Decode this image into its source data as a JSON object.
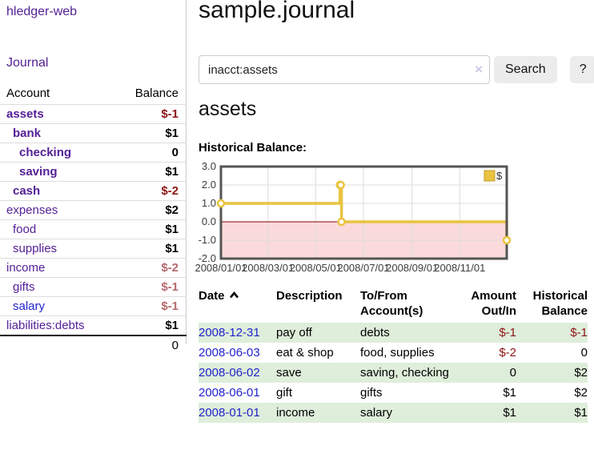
{
  "app": {
    "brand": "hledger-web",
    "nav_journal": "Journal"
  },
  "sidebar": {
    "columns": {
      "account": "Account",
      "balance": "Balance"
    },
    "accounts": [
      {
        "name": "assets",
        "indent": 0,
        "bold": true,
        "balance": "$-1"
      },
      {
        "name": "bank",
        "indent": 1,
        "bold": true,
        "balance": "$1"
      },
      {
        "name": "checking",
        "indent": 2,
        "bold": true,
        "balance": "0"
      },
      {
        "name": "saving",
        "indent": 2,
        "bold": true,
        "balance": "$1"
      },
      {
        "name": "cash",
        "indent": 1,
        "bold": true,
        "balance": "$-2"
      },
      {
        "name": "expenses",
        "indent": 0,
        "bold": false,
        "balance": "$2"
      },
      {
        "name": "food",
        "indent": 1,
        "bold": false,
        "balance": "$1"
      },
      {
        "name": "supplies",
        "indent": 1,
        "bold": false,
        "balance": "$1"
      },
      {
        "name": "income",
        "indent": 0,
        "bold": false,
        "balance": "$-2"
      },
      {
        "name": "gifts",
        "indent": 1,
        "bold": false,
        "balance": "$-1"
      },
      {
        "name": "salary",
        "indent": 1,
        "bold": false,
        "link_blue": true,
        "balance": "$-1"
      },
      {
        "name": "liabilities:debts",
        "indent": 0,
        "bold": false,
        "balance": "$1"
      }
    ],
    "total": "0"
  },
  "header": {
    "title": "sample.journal"
  },
  "search": {
    "value": "inacct:assets",
    "clear_icon": "×",
    "button": "Search",
    "help_button": "?"
  },
  "account_page": {
    "heading": "assets",
    "chart_label": "Historical Balance:"
  },
  "chart_data": {
    "type": "line",
    "title": "Historical Balance",
    "legend": {
      "label": "$",
      "position": "top-right",
      "swatch_color": "#e9c340",
      "swatch_border": "#c49b2a"
    },
    "series": [
      {
        "name": "$",
        "color": "#e9c340",
        "step": true,
        "points": [
          [
            "2008-01-01",
            1
          ],
          [
            "2008-06-01",
            2
          ],
          [
            "2008-06-02",
            2
          ],
          [
            "2008-06-03",
            0
          ],
          [
            "2008-12-31",
            -1
          ]
        ]
      }
    ],
    "xlim": [
      "2008-01-01",
      "2008-12-31"
    ],
    "ylim": [
      -2,
      3
    ],
    "y_ticks": [
      {
        "value": 3,
        "label": "3.0"
      },
      {
        "value": 2,
        "label": "2.0"
      },
      {
        "value": 1,
        "label": "1.0"
      },
      {
        "value": 0,
        "label": "0.0"
      },
      {
        "value": -1,
        "label": "-1.0"
      },
      {
        "value": -2,
        "label": "-2.0"
      }
    ],
    "x_ticks": [
      {
        "date": "2008-01-01",
        "label": "2008/01/01"
      },
      {
        "date": "2008-03-01",
        "label": "2008/03/01"
      },
      {
        "date": "2008-05-01",
        "label": "2008/05/01"
      },
      {
        "date": "2008-07-01",
        "label": "2008/07/01"
      },
      {
        "date": "2008-09-01",
        "label": "2008/09/01"
      },
      {
        "date": "2008-11-01",
        "label": "2008/11/01"
      }
    ],
    "grid": true,
    "negative_region_color": "#fadada",
    "zero_line_color": "#8b0000"
  },
  "register": {
    "columns": [
      {
        "label": "Date",
        "sorted": "asc"
      },
      {
        "label": "Description"
      },
      {
        "label": "To/From Account(s)"
      },
      {
        "label": "Amount Out/In",
        "align": "right"
      },
      {
        "label": "Historical Balance",
        "align": "right"
      }
    ],
    "rows": [
      {
        "date": "2008-12-31",
        "description": "pay off",
        "accounts": "debts",
        "amount": "$-1",
        "balance": "$-1"
      },
      {
        "date": "2008-06-03",
        "description": "eat & shop",
        "accounts": "food, supplies",
        "amount": "$-2",
        "balance": "0"
      },
      {
        "date": "2008-06-02",
        "description": "save",
        "accounts": "saving,\nchecking",
        "amount": "0",
        "balance": "$2"
      },
      {
        "date": "2008-06-01",
        "description": "gift",
        "accounts": "gifts",
        "amount": "$1",
        "balance": "$2"
      },
      {
        "date": "2008-01-01",
        "description": "income",
        "accounts": "salary",
        "amount": "$1",
        "balance": "$1"
      }
    ]
  }
}
